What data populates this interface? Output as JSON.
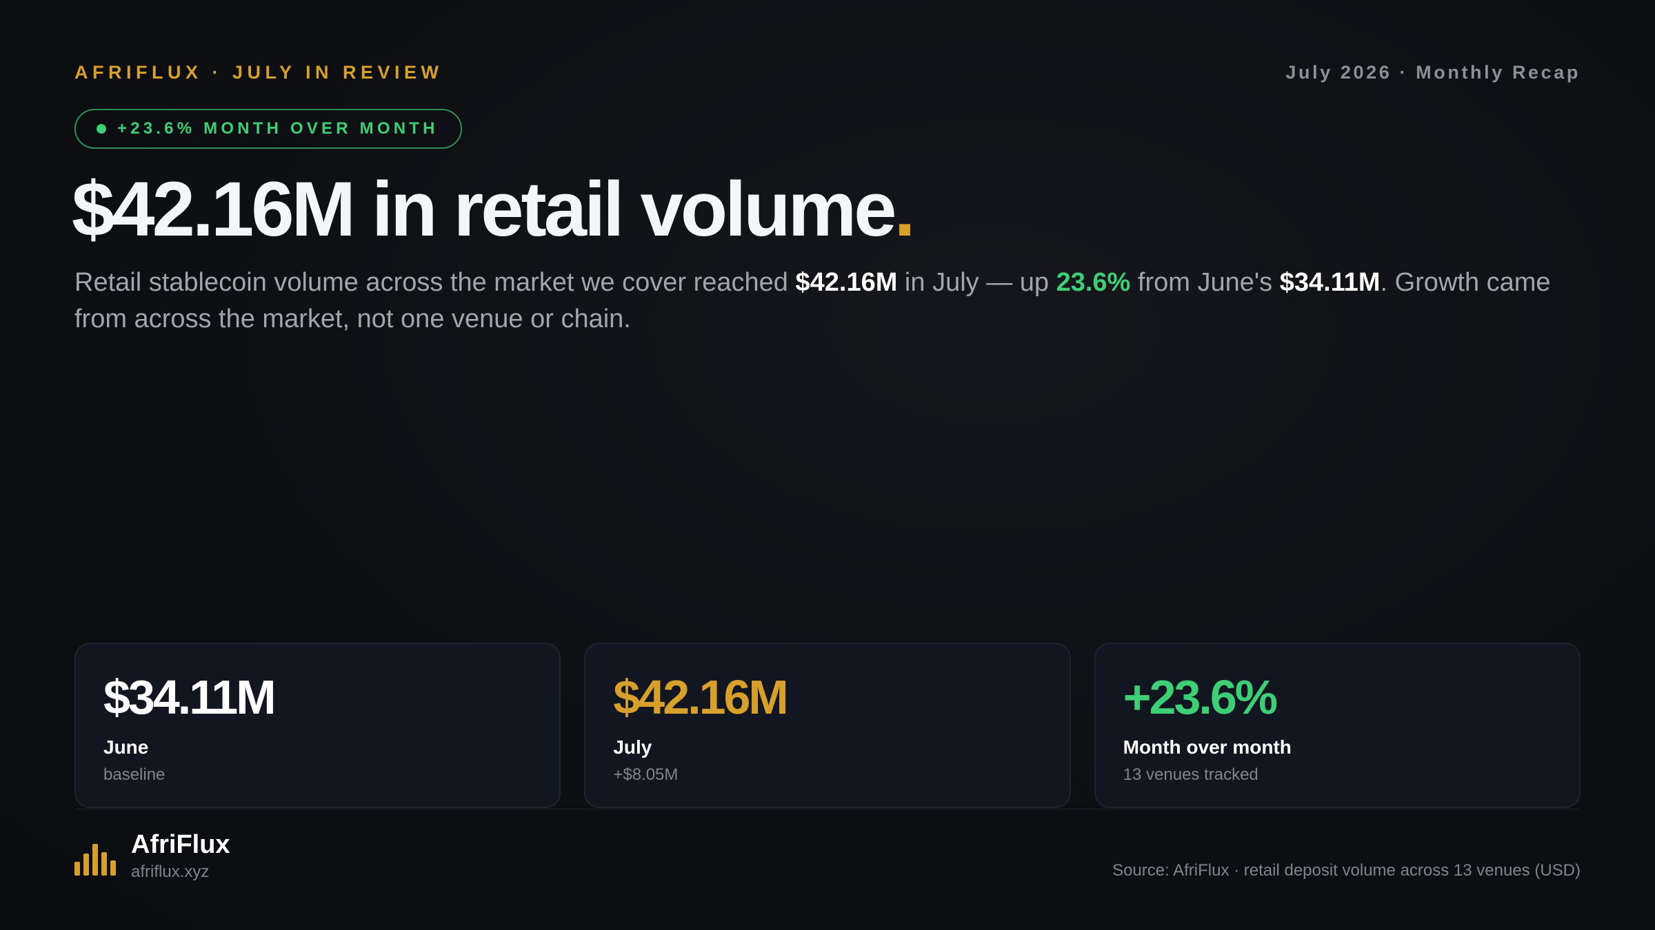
{
  "header": {
    "eyebrow": "AFRIFLUX · JULY IN REVIEW",
    "date_label": "July 2026 · Monthly Recap"
  },
  "pill": {
    "text": "+23.6% MONTH OVER MONTH",
    "color": "#3ccf75"
  },
  "headline": {
    "text": "$42.16M in retail volume",
    "accent_dot": "."
  },
  "lede": {
    "part1": "Retail stablecoin volume across the market we cover reached ",
    "july_value": "$42.16M",
    "part2": " in July — up ",
    "growth": "23.6%",
    "part3": " from June's ",
    "june_value": "$34.11M",
    "part4": ". Growth came from across the market, not one venue or chain."
  },
  "cards": [
    {
      "value": "$34.11M",
      "label": "June",
      "sub": "baseline",
      "color": "#ffffff"
    },
    {
      "value": "$42.16M",
      "label": "July",
      "sub": "+$8.05M",
      "color": "#d6a02b"
    },
    {
      "value": "+23.6%",
      "label": "Month over month",
      "sub": "13 venues tracked",
      "color": "#3ccf75"
    }
  ],
  "footer": {
    "brand_name": "AfriFlux",
    "brand_url": "afriflux.xyz",
    "logo_icon": "bar-chart-icon",
    "source": "Source: AfriFlux · retail deposit volume across 13 venues (USD)"
  },
  "colors": {
    "accent": "#d6a02b",
    "positive": "#3ccf75",
    "background": "#0c0e12"
  }
}
